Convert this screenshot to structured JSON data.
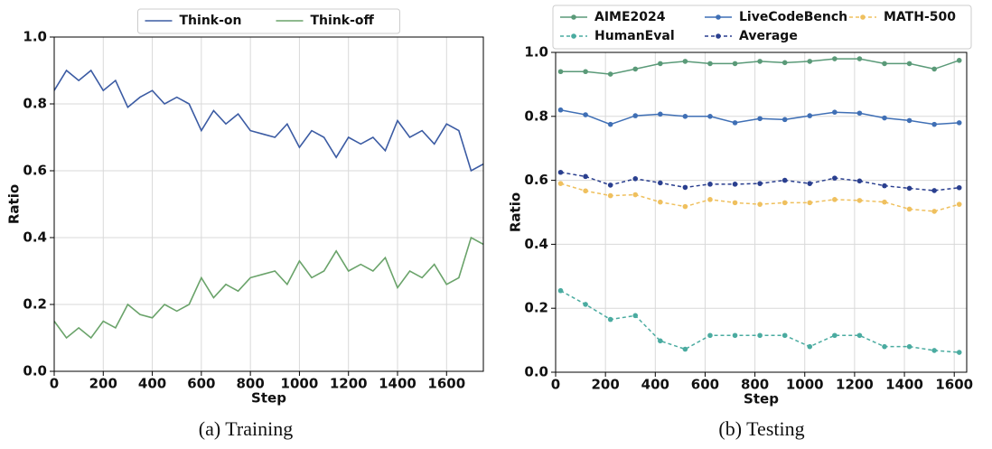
{
  "chart_data": [
    {
      "type": "line",
      "caption": "(a) Training",
      "x_label": "Step",
      "y_label": "Ratio",
      "x": [
        0,
        50,
        100,
        150,
        200,
        250,
        300,
        350,
        400,
        450,
        500,
        550,
        600,
        650,
        700,
        750,
        800,
        850,
        900,
        950,
        1000,
        1050,
        1100,
        1150,
        1200,
        1250,
        1300,
        1350,
        1400,
        1450,
        1500,
        1550,
        1600,
        1650,
        1700,
        1750
      ],
      "series": [
        {
          "name": "Think-on",
          "color": "#3b5ba3",
          "values": [
            0.84,
            0.9,
            0.87,
            0.9,
            0.84,
            0.87,
            0.79,
            0.82,
            0.84,
            0.8,
            0.82,
            0.8,
            0.72,
            0.78,
            0.74,
            0.77,
            0.72,
            0.71,
            0.7,
            0.74,
            0.67,
            0.72,
            0.7,
            0.64,
            0.7,
            0.68,
            0.7,
            0.66,
            0.75,
            0.7,
            0.72,
            0.68,
            0.74,
            0.72,
            0.6,
            0.62
          ]
        },
        {
          "name": "Think-off",
          "color": "#6aa36a",
          "values": [
            0.15,
            0.1,
            0.13,
            0.1,
            0.15,
            0.13,
            0.2,
            0.17,
            0.16,
            0.2,
            0.18,
            0.2,
            0.28,
            0.22,
            0.26,
            0.24,
            0.28,
            0.29,
            0.3,
            0.26,
            0.33,
            0.28,
            0.3,
            0.36,
            0.3,
            0.32,
            0.3,
            0.34,
            0.25,
            0.3,
            0.28,
            0.32,
            0.26,
            0.28,
            0.4,
            0.38
          ]
        }
      ],
      "xlim": [
        0,
        1750
      ],
      "xticks": [
        0,
        200,
        400,
        600,
        800,
        1000,
        1200,
        1400,
        1600
      ],
      "ylim": [
        0,
        1.0
      ],
      "yticks": [
        {
          "value": 0,
          "label": "0.0"
        },
        {
          "value": 0.2,
          "label": "0.2"
        },
        {
          "value": 0.4,
          "label": "0.4"
        },
        {
          "value": 0.6,
          "label": "0.6"
        },
        {
          "value": 0.8,
          "label": "0.8"
        },
        {
          "value": 1.0,
          "label": "1.0"
        }
      ],
      "grid": true,
      "legend": "top",
      "legend_columns": 2
    },
    {
      "type": "line",
      "caption": "(b) Testing",
      "x_label": "Step",
      "y_label": "Ratio",
      "x": [
        20,
        120,
        220,
        320,
        420,
        520,
        620,
        720,
        820,
        920,
        1020,
        1120,
        1220,
        1320,
        1420,
        1520,
        1620
      ],
      "series": [
        {
          "name": "AIME2024",
          "color": "#5a9a78",
          "linestyle": "solid",
          "values": [
            0.94,
            0.94,
            0.932,
            0.948,
            0.965,
            0.972,
            0.965,
            0.965,
            0.972,
            0.968,
            0.972,
            0.98,
            0.98,
            0.965,
            0.965,
            0.948,
            0.975
          ]
        },
        {
          "name": "HumanEval",
          "color": "#4aaba0",
          "linestyle": "dashed",
          "values": [
            0.255,
            0.212,
            0.165,
            0.177,
            0.098,
            0.072,
            0.115,
            0.115,
            0.115,
            0.115,
            0.08,
            0.115,
            0.115,
            0.08,
            0.08,
            0.068,
            0.062
          ]
        },
        {
          "name": "LiveCodeBench",
          "color": "#3f6fb5",
          "linestyle": "solid",
          "values": [
            0.82,
            0.805,
            0.775,
            0.802,
            0.807,
            0.8,
            0.8,
            0.78,
            0.793,
            0.79,
            0.802,
            0.813,
            0.81,
            0.795,
            0.787,
            0.775,
            0.78
          ]
        },
        {
          "name": "Average",
          "color": "#2a3f8f",
          "linestyle": "dashed",
          "values": [
            0.625,
            0.612,
            0.585,
            0.605,
            0.592,
            0.578,
            0.588,
            0.588,
            0.59,
            0.6,
            0.59,
            0.607,
            0.598,
            0.583,
            0.575,
            0.568,
            0.577
          ]
        },
        {
          "name": "MATH-500",
          "color": "#efc05e",
          "linestyle": "dashed",
          "values": [
            0.59,
            0.567,
            0.552,
            0.555,
            0.532,
            0.518,
            0.54,
            0.53,
            0.525,
            0.53,
            0.53,
            0.54,
            0.537,
            0.532,
            0.51,
            0.503,
            0.525
          ]
        }
      ],
      "xlim": [
        0,
        1650
      ],
      "xticks": [
        0,
        200,
        400,
        600,
        800,
        1000,
        1200,
        1400,
        1600
      ],
      "ylim": [
        0,
        1.0
      ],
      "yticks": [
        {
          "value": 0,
          "label": "0.0"
        },
        {
          "value": 0.2,
          "label": "0.2"
        },
        {
          "value": 0.4,
          "label": "0.4"
        },
        {
          "value": 0.6,
          "label": "0.6"
        },
        {
          "value": 0.8,
          "label": "0.8"
        },
        {
          "value": 1.0,
          "label": "1.0"
        }
      ],
      "grid": true,
      "markers": true,
      "legend": "above",
      "legend_columns": 3
    }
  ]
}
